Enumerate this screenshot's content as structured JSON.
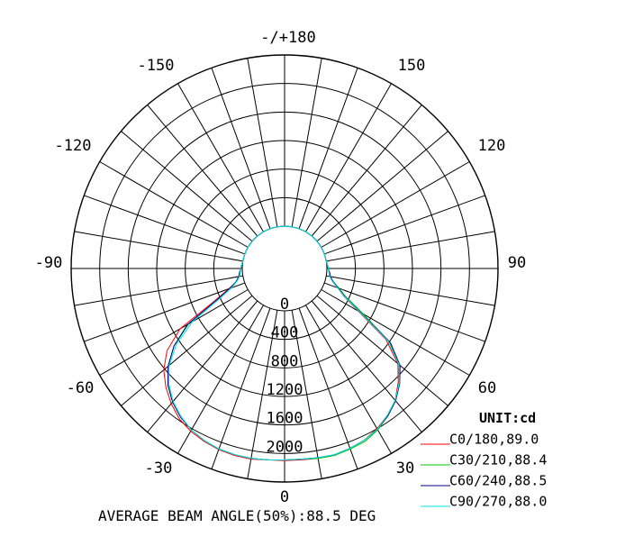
{
  "chart_data": {
    "type": "polar",
    "unit_label": "UNIT:cd",
    "caption": "AVERAGE BEAM ANGLE(50%):88.5 DEG",
    "angle_labels": [
      "-/+180",
      "150",
      "120",
      "90",
      "60",
      "30",
      "0",
      "-30",
      "-60",
      "-90",
      "-120",
      "-150"
    ],
    "ring_labels": [
      "0",
      "400",
      "800",
      "1200",
      "1600",
      "2000"
    ],
    "rmax": 2400,
    "series": [
      {
        "name": "C0/180,89.0",
        "color": "#ff0000",
        "points": [
          [
            -180,
            0
          ],
          [
            -170,
            0
          ],
          [
            -160,
            0
          ],
          [
            -150,
            0
          ],
          [
            -140,
            0
          ],
          [
            -130,
            0
          ],
          [
            -120,
            0
          ],
          [
            -110,
            0
          ],
          [
            -100,
            0
          ],
          [
            -95,
            10
          ],
          [
            -90,
            20
          ],
          [
            -85,
            30
          ],
          [
            -80,
            50
          ],
          [
            -75,
            100
          ],
          [
            -70,
            240
          ],
          [
            -65,
            500
          ],
          [
            -60,
            1100
          ],
          [
            -55,
            1420
          ],
          [
            -50,
            1620
          ],
          [
            -45,
            1760
          ],
          [
            -40,
            1880
          ],
          [
            -35,
            1980
          ],
          [
            -30,
            2040
          ],
          [
            -25,
            2080
          ],
          [
            -20,
            2110
          ],
          [
            -15,
            2120
          ],
          [
            -10,
            2120
          ],
          [
            -5,
            2100
          ],
          [
            0,
            2100
          ],
          [
            5,
            2100
          ],
          [
            10,
            2110
          ],
          [
            15,
            2110
          ],
          [
            20,
            2090
          ],
          [
            25,
            2060
          ],
          [
            30,
            2000
          ],
          [
            35,
            1920
          ],
          [
            40,
            1820
          ],
          [
            45,
            1660
          ],
          [
            50,
            1480
          ],
          [
            55,
            1140
          ],
          [
            60,
            600
          ],
          [
            65,
            320
          ],
          [
            70,
            200
          ],
          [
            75,
            100
          ],
          [
            80,
            50
          ],
          [
            85,
            30
          ],
          [
            90,
            20
          ],
          [
            95,
            10
          ],
          [
            100,
            0
          ],
          [
            110,
            0
          ],
          [
            120,
            0
          ],
          [
            130,
            0
          ],
          [
            140,
            0
          ],
          [
            150,
            0
          ],
          [
            160,
            0
          ],
          [
            170,
            0
          ],
          [
            180,
            0
          ]
        ]
      },
      {
        "name": "C30/210,88.4",
        "color": "#00cc00",
        "points": [
          [
            -180,
            0
          ],
          [
            -170,
            0
          ],
          [
            -160,
            0
          ],
          [
            -150,
            0
          ],
          [
            -140,
            0
          ],
          [
            -130,
            0
          ],
          [
            -120,
            0
          ],
          [
            -110,
            0
          ],
          [
            -100,
            0
          ],
          [
            -95,
            10
          ],
          [
            -90,
            20
          ],
          [
            -85,
            30
          ],
          [
            -80,
            50
          ],
          [
            -75,
            100
          ],
          [
            -70,
            200
          ],
          [
            -65,
            440
          ],
          [
            -60,
            960
          ],
          [
            -55,
            1300
          ],
          [
            -50,
            1540
          ],
          [
            -45,
            1720
          ],
          [
            -40,
            1850
          ],
          [
            -35,
            1950
          ],
          [
            -30,
            2020
          ],
          [
            -25,
            2070
          ],
          [
            -20,
            2100
          ],
          [
            -15,
            2110
          ],
          [
            -10,
            2110
          ],
          [
            -5,
            2100
          ],
          [
            0,
            2090
          ],
          [
            5,
            2090
          ],
          [
            10,
            2110
          ],
          [
            15,
            2120
          ],
          [
            20,
            2100
          ],
          [
            25,
            2080
          ],
          [
            30,
            2020
          ],
          [
            35,
            1930
          ],
          [
            40,
            1820
          ],
          [
            45,
            1680
          ],
          [
            50,
            1500
          ],
          [
            55,
            1200
          ],
          [
            60,
            680
          ],
          [
            65,
            360
          ],
          [
            70,
            220
          ],
          [
            75,
            110
          ],
          [
            80,
            50
          ],
          [
            85,
            30
          ],
          [
            90,
            20
          ],
          [
            95,
            10
          ],
          [
            100,
            0
          ],
          [
            110,
            0
          ],
          [
            120,
            0
          ],
          [
            130,
            0
          ],
          [
            140,
            0
          ],
          [
            150,
            0
          ],
          [
            160,
            0
          ],
          [
            170,
            0
          ],
          [
            180,
            0
          ]
        ]
      },
      {
        "name": "C60/240,88.5",
        "color": "#00008b",
        "points": [
          [
            -180,
            0
          ],
          [
            -170,
            0
          ],
          [
            -160,
            0
          ],
          [
            -150,
            0
          ],
          [
            -140,
            0
          ],
          [
            -130,
            0
          ],
          [
            -120,
            0
          ],
          [
            -110,
            0
          ],
          [
            -100,
            0
          ],
          [
            -95,
            10
          ],
          [
            -90,
            20
          ],
          [
            -85,
            40
          ],
          [
            -80,
            60
          ],
          [
            -75,
            110
          ],
          [
            -70,
            220
          ],
          [
            -65,
            460
          ],
          [
            -60,
            980
          ],
          [
            -55,
            1300
          ],
          [
            -50,
            1540
          ],
          [
            -45,
            1720
          ],
          [
            -40,
            1850
          ],
          [
            -35,
            1950
          ],
          [
            -30,
            2020
          ],
          [
            -25,
            2070
          ],
          [
            -20,
            2100
          ],
          [
            -15,
            2110
          ],
          [
            -10,
            2110
          ],
          [
            -5,
            2100
          ],
          [
            0,
            2090
          ],
          [
            5,
            2090
          ],
          [
            10,
            2100
          ],
          [
            15,
            2110
          ],
          [
            20,
            2090
          ],
          [
            25,
            2060
          ],
          [
            30,
            2010
          ],
          [
            35,
            1930
          ],
          [
            40,
            1830
          ],
          [
            45,
            1690
          ],
          [
            50,
            1520
          ],
          [
            55,
            1220
          ],
          [
            60,
            640
          ],
          [
            65,
            340
          ],
          [
            70,
            210
          ],
          [
            75,
            110
          ],
          [
            80,
            60
          ],
          [
            85,
            40
          ],
          [
            90,
            20
          ],
          [
            95,
            10
          ],
          [
            100,
            0
          ],
          [
            110,
            0
          ],
          [
            120,
            0
          ],
          [
            130,
            0
          ],
          [
            140,
            0
          ],
          [
            150,
            0
          ],
          [
            160,
            0
          ],
          [
            170,
            0
          ],
          [
            180,
            0
          ]
        ]
      },
      {
        "name": "C90/270,88.0",
        "color": "#00e5e5",
        "points": [
          [
            -180,
            0
          ],
          [
            -170,
            0
          ],
          [
            -160,
            0
          ],
          [
            -150,
            0
          ],
          [
            -140,
            0
          ],
          [
            -130,
            0
          ],
          [
            -120,
            0
          ],
          [
            -110,
            0
          ],
          [
            -100,
            0
          ],
          [
            -95,
            10
          ],
          [
            -90,
            20
          ],
          [
            -85,
            30
          ],
          [
            -80,
            50
          ],
          [
            -75,
            100
          ],
          [
            -70,
            200
          ],
          [
            -65,
            420
          ],
          [
            -60,
            900
          ],
          [
            -55,
            1260
          ],
          [
            -50,
            1520
          ],
          [
            -45,
            1700
          ],
          [
            -40,
            1840
          ],
          [
            -35,
            1940
          ],
          [
            -30,
            2020
          ],
          [
            -25,
            2070
          ],
          [
            -20,
            2100
          ],
          [
            -15,
            2110
          ],
          [
            -10,
            2110
          ],
          [
            -5,
            2100
          ],
          [
            0,
            2090
          ],
          [
            5,
            2090
          ],
          [
            10,
            2100
          ],
          [
            15,
            2110
          ],
          [
            20,
            2090
          ],
          [
            25,
            2060
          ],
          [
            30,
            2010
          ],
          [
            35,
            1920
          ],
          [
            40,
            1820
          ],
          [
            45,
            1680
          ],
          [
            50,
            1500
          ],
          [
            55,
            1180
          ],
          [
            60,
            620
          ],
          [
            65,
            330
          ],
          [
            70,
            200
          ],
          [
            75,
            100
          ],
          [
            80,
            50
          ],
          [
            85,
            30
          ],
          [
            90,
            20
          ],
          [
            95,
            10
          ],
          [
            100,
            0
          ],
          [
            110,
            0
          ],
          [
            120,
            0
          ],
          [
            130,
            0
          ],
          [
            140,
            0
          ],
          [
            150,
            0
          ],
          [
            160,
            0
          ],
          [
            170,
            0
          ],
          [
            180,
            0
          ]
        ]
      }
    ]
  }
}
